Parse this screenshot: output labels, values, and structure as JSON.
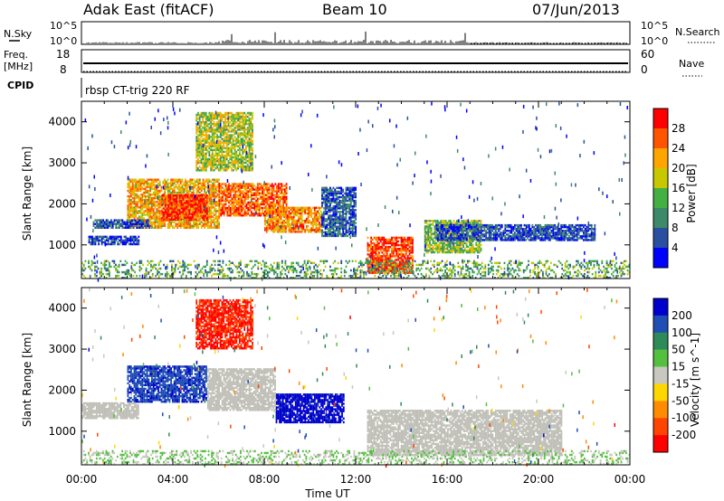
{
  "header": {
    "station": "Adak East (fitACF)",
    "beam": "Beam 10",
    "date": "07/Jun/2013"
  },
  "top_panels": {
    "nsky_label": "N.Sky",
    "nsky_ticks": [
      "10^5",
      "10^0"
    ],
    "nsearch_label": "N.Search",
    "freq_label_1": "Freq.",
    "freq_label_2": "[MHz]",
    "freq_ticks": [
      "18",
      "8"
    ],
    "nave_label": "Nave",
    "nave_ticks": [
      "60",
      "0"
    ],
    "cpid_label": "CPID",
    "cpid_text": "rbsp CT-trig 220 RF"
  },
  "colors": {
    "power_scale": [
      "#0000ff",
      "#2a4ea0",
      "#3c8a6a",
      "#44b044",
      "#c8c800",
      "#ffa500",
      "#ff5500",
      "#ff0000"
    ],
    "velocity_scale": [
      "#0000cc",
      "#1f4fb4",
      "#2e8b57",
      "#55c040",
      "#c8c8c0",
      "#ffd700",
      "#ff8c00",
      "#ff4500",
      "#ff0000"
    ],
    "ground_scatter": "#c0c0b8"
  },
  "chart_data": [
    {
      "type": "heatmap",
      "name_text": "Power",
      "ylabel": "Slant Range [km]",
      "xlabel": "Time UT",
      "x_ticks": [
        "00:00",
        "04:00",
        "08:00",
        "12:00",
        "16:00",
        "20:00",
        "00:00"
      ],
      "y_ticks": [
        "1000",
        "2000",
        "3000",
        "4000"
      ],
      "ylim": [
        180,
        4500
      ],
      "xlim_hours": [
        0,
        24
      ],
      "colorbar": {
        "label": "Power [dB]",
        "ticks": [
          "28",
          "24",
          "20",
          "16",
          "12",
          "8",
          "4"
        ],
        "range": [
          0,
          30
        ]
      },
      "regions": [
        {
          "t": [
            2.0,
            6.0
          ],
          "r": [
            1400,
            2600
          ],
          "v": 20
        },
        {
          "t": [
            3.5,
            5.5
          ],
          "r": [
            1600,
            2200
          ],
          "v": 27
        },
        {
          "t": [
            6.0,
            9.0
          ],
          "r": [
            1700,
            2500
          ],
          "v": 24
        },
        {
          "t": [
            8.0,
            10.5
          ],
          "r": [
            1300,
            1900
          ],
          "v": 22
        },
        {
          "t": [
            0.5,
            3.0
          ],
          "r": [
            1400,
            1600
          ],
          "v": 6
        },
        {
          "t": [
            0.3,
            2.5
          ],
          "r": [
            1000,
            1200
          ],
          "v": 5
        },
        {
          "t": [
            5.0,
            7.5
          ],
          "r": [
            2800,
            4200
          ],
          "v": 16
        },
        {
          "t": [
            10.5,
            12.0
          ],
          "r": [
            1200,
            2400
          ],
          "v": 6
        },
        {
          "t": [
            12.5,
            14.5
          ],
          "r": [
            300,
            1200
          ],
          "v": 26
        },
        {
          "t": [
            15.0,
            17.5
          ],
          "r": [
            800,
            1600
          ],
          "v": 14
        },
        {
          "t": [
            15.5,
            22.5
          ],
          "r": [
            1100,
            1500
          ],
          "v": 5
        },
        {
          "t": [
            0.0,
            24.0
          ],
          "r": [
            180,
            600
          ],
          "v": 12
        }
      ]
    },
    {
      "type": "heatmap",
      "name_text": "Velocity",
      "ylabel": "Slant Range [km]",
      "xlabel": "Time UT",
      "x_ticks": [
        "00:00",
        "04:00",
        "08:00",
        "12:00",
        "16:00",
        "20:00",
        "00:00"
      ],
      "y_ticks": [
        "1000",
        "2000",
        "3000",
        "4000"
      ],
      "ylim": [
        180,
        4500
      ],
      "xlim_hours": [
        0,
        24
      ],
      "colorbar": {
        "label": "Velocity [m s^-1]",
        "ticks": [
          "200",
          "100",
          "50",
          "15",
          "-15",
          "-50",
          "-100",
          "-200"
        ],
        "range": [
          -250,
          250
        ]
      },
      "regions": [
        {
          "t": [
            2.0,
            5.5
          ],
          "r": [
            1700,
            2600
          ],
          "v": 180
        },
        {
          "t": [
            8.5,
            11.5
          ],
          "r": [
            1200,
            1900
          ],
          "v": 220
        },
        {
          "t": [
            5.5,
            8.5
          ],
          "r": [
            1500,
            2500
          ],
          "v": 0
        },
        {
          "t": [
            0.0,
            2.5
          ],
          "r": [
            1300,
            1700
          ],
          "v": 0
        },
        {
          "t": [
            5.0,
            7.5
          ],
          "r": [
            3000,
            4200
          ],
          "v": -200
        },
        {
          "t": [
            12.5,
            21.0
          ],
          "r": [
            400,
            1500
          ],
          "v": 0
        },
        {
          "t": [
            0.0,
            24.0
          ],
          "r": [
            180,
            500
          ],
          "v": 30
        }
      ]
    }
  ]
}
